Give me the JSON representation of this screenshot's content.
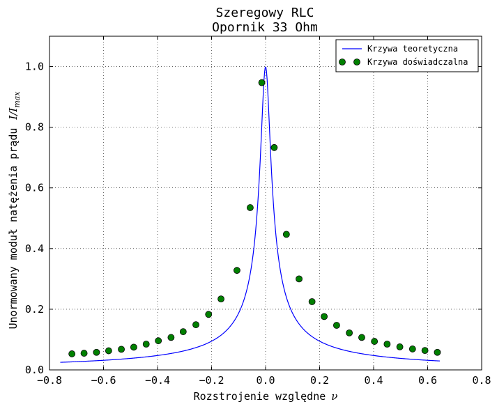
{
  "chart_data": {
    "type": "line",
    "title": [
      "Szeregowy RLC",
      "Opornik 33 Ohm"
    ],
    "xlabel": "Rozstrojenie względne",
    "xlabel_symbol": "ν",
    "ylabel": "Unormowany moduł natężenia prądu",
    "ylabel_symbol": "I/I",
    "ylabel_subscript": "max",
    "xlim": [
      -0.8,
      0.8
    ],
    "ylim": [
      0.0,
      1.1
    ],
    "xticks": [
      -0.8,
      -0.6,
      -0.4,
      -0.2,
      0.0,
      0.2,
      0.4,
      0.6,
      0.8
    ],
    "yticks": [
      0.0,
      0.2,
      0.4,
      0.6,
      0.8,
      1.0
    ],
    "xtick_labels": [
      "−0.8",
      "−0.6",
      "−0.4",
      "−0.2",
      "0.0",
      "0.2",
      "0.4",
      "0.6",
      "0.8"
    ],
    "ytick_labels": [
      "0.0",
      "0.2",
      "0.4",
      "0.6",
      "0.8",
      "1.0"
    ],
    "grid": true,
    "legend_position": "top-right",
    "series": [
      {
        "name": "Krzywa teoretyczna",
        "kind": "line",
        "color": "#0000ff",
        "x_range": [
          -0.76,
          0.645
        ],
        "model": "lorentzian",
        "gamma": 0.019
      },
      {
        "name": "Krzywa doświadczalna",
        "kind": "scatter",
        "color": "#008000",
        "x": [
          -0.717,
          -0.672,
          -0.626,
          -0.581,
          -0.534,
          -0.488,
          -0.442,
          -0.397,
          -0.35,
          -0.305,
          -0.258,
          -0.211,
          -0.165,
          -0.106,
          -0.057,
          -0.014,
          0.032,
          0.077,
          0.124,
          0.172,
          0.217,
          0.263,
          0.31,
          0.356,
          0.403,
          0.45,
          0.497,
          0.544,
          0.59,
          0.636
        ],
        "y": [
          0.053,
          0.055,
          0.058,
          0.063,
          0.068,
          0.075,
          0.085,
          0.096,
          0.107,
          0.126,
          0.149,
          0.183,
          0.234,
          0.328,
          0.535,
          0.947,
          0.733,
          0.447,
          0.3,
          0.225,
          0.176,
          0.147,
          0.122,
          0.107,
          0.094,
          0.085,
          0.076,
          0.069,
          0.064,
          0.058
        ]
      }
    ]
  }
}
